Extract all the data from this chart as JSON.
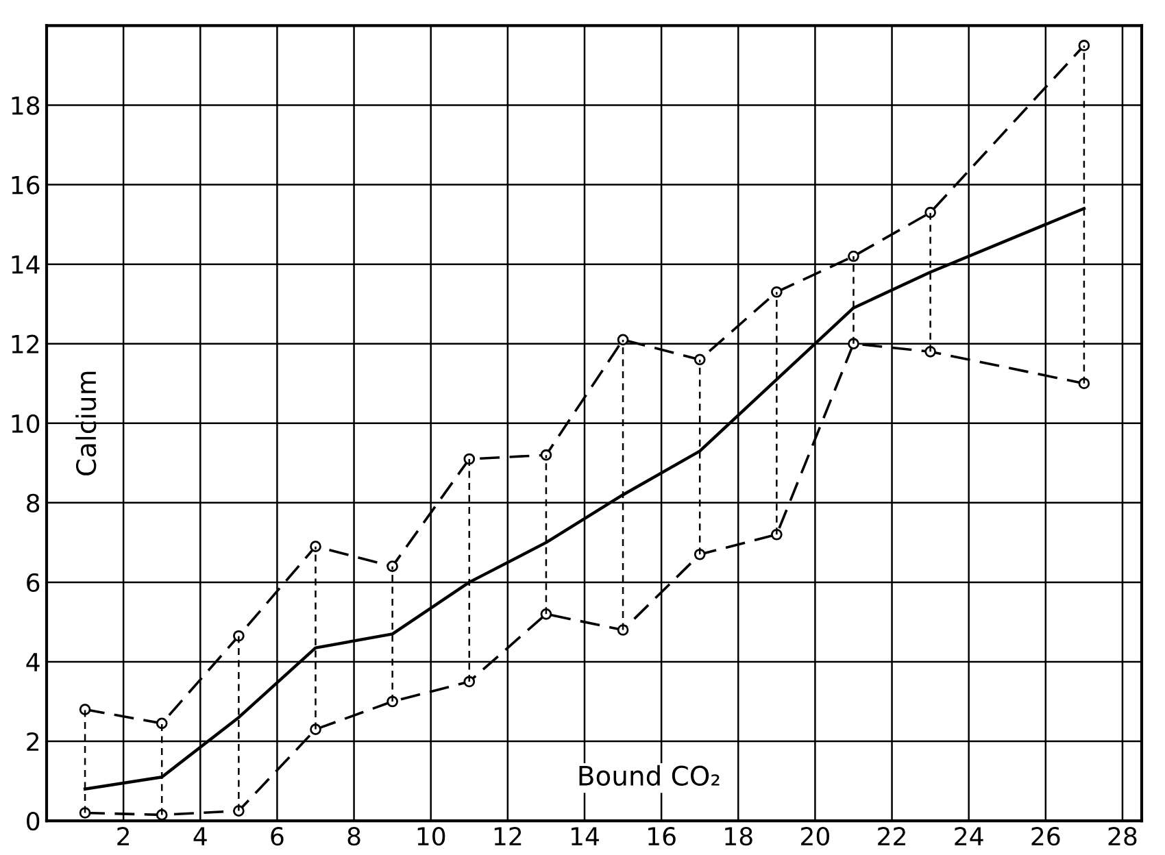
{
  "chart_data": {
    "type": "line",
    "xlabel": "Bound CO₂",
    "ylabel": "Calcium",
    "x": [
      1,
      3,
      5,
      7,
      9,
      11,
      13,
      15,
      17,
      19,
      21,
      23,
      27
    ],
    "series": [
      {
        "color": "#000000",
        "line_style": "solid",
        "marker": "none",
        "values": [
          0.8,
          1.1,
          2.6,
          4.35,
          4.7,
          6.0,
          7.0,
          8.2,
          9.3,
          11.1,
          12.9,
          13.8,
          15.4
        ],
        "errors": [
          [
            0.2,
            2.8
          ],
          [
            0.15,
            2.45
          ],
          [
            0.25,
            4.65
          ],
          [
            2.3,
            6.9
          ],
          [
            3.0,
            6.4
          ],
          [
            3.5,
            9.1
          ],
          [
            5.2,
            9.2
          ],
          [
            4.8,
            12.1
          ],
          [
            6.7,
            11.6
          ],
          [
            7.2,
            13.3
          ],
          [
            12.0,
            14.2
          ],
          [
            11.8,
            15.3
          ],
          [
            11.0,
            19.5
          ]
        ]
      },
      {
        "color": "#000000",
        "line_style": "dashed",
        "marker": "circle",
        "values": [
          2.8,
          2.45,
          4.65,
          6.9,
          6.4,
          9.1,
          9.2,
          12.1,
          11.6,
          13.3,
          14.2,
          15.3,
          19.5
        ]
      },
      {
        "color": "#000000",
        "line_style": "dashed",
        "marker": "circle",
        "values": [
          0.2,
          0.15,
          0.25,
          2.3,
          3.0,
          3.5,
          5.2,
          4.8,
          6.7,
          7.2,
          12.0,
          11.8,
          11.0
        ]
      }
    ],
    "xlim": [
      0,
      28.5
    ],
    "ylim": [
      0,
      20
    ],
    "xticks": [
      2,
      4,
      6,
      8,
      10,
      12,
      14,
      16,
      18,
      20,
      22,
      24,
      26,
      28
    ],
    "yticks": [
      0,
      2,
      4,
      6,
      8,
      10,
      12,
      14,
      16,
      18
    ],
    "grid": true,
    "legend": false
  }
}
